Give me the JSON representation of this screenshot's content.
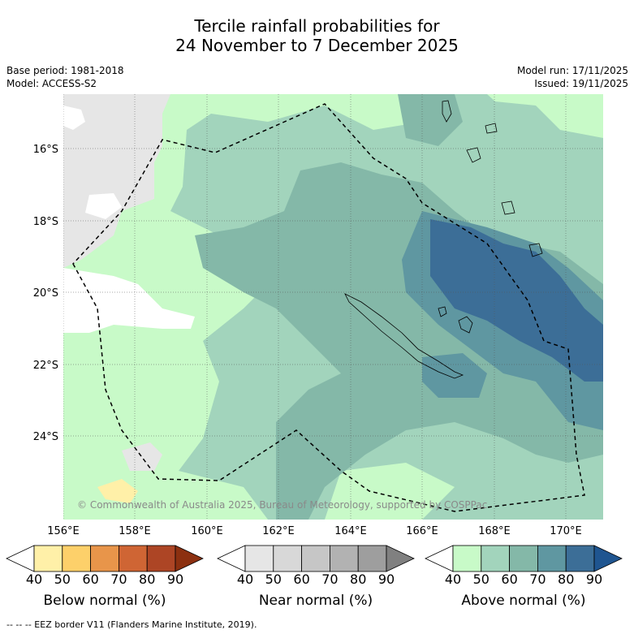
{
  "title": {
    "line1": "Tercile rainfall probabilities for",
    "line2": "24 November to 7 December 2025"
  },
  "meta": {
    "base_period": "Base period: 1981-2018",
    "model": "Model: ACCESS-S2",
    "model_run": "Model run: 17/11/2025",
    "issued": "Issued: 19/11/2025"
  },
  "axes": {
    "lat_ticks": [
      "16°S",
      "18°S",
      "20°S",
      "22°S",
      "24°S"
    ],
    "lon_ticks": [
      "156°E",
      "158°E",
      "160°E",
      "162°E",
      "164°E",
      "166°E",
      "168°E",
      "170°E"
    ]
  },
  "copyright": "© Commonwealth of Australia 2025, Bureau of Meteorology, supported by COSPPac",
  "colorbars": [
    {
      "label": "Below normal (%)",
      "ticks": [
        "40",
        "50",
        "60",
        "70",
        "80",
        "90"
      ],
      "colors": [
        "#ffffff",
        "#fff0a8",
        "#fdd06a",
        "#e8954a",
        "#cf6534",
        "#ad4525",
        "#8c3010"
      ]
    },
    {
      "label": "Near normal (%)",
      "ticks": [
        "40",
        "50",
        "60",
        "70",
        "80",
        "90"
      ],
      "colors": [
        "#ffffff",
        "#e6e6e6",
        "#d8d8d8",
        "#c6c6c6",
        "#b2b2b2",
        "#9e9e9e",
        "#808080"
      ]
    },
    {
      "label": "Above normal (%)",
      "ticks": [
        "40",
        "50",
        "60",
        "70",
        "80",
        "90"
      ],
      "colors": [
        "#ffffff",
        "#c8fac8",
        "#a2d4bc",
        "#84b8a8",
        "#5f97a1",
        "#3c6e97",
        "#1f5590"
      ]
    }
  ],
  "footer": "-- -- -- EEZ border V11 (Flanders Marine Institute, 2019)."
}
